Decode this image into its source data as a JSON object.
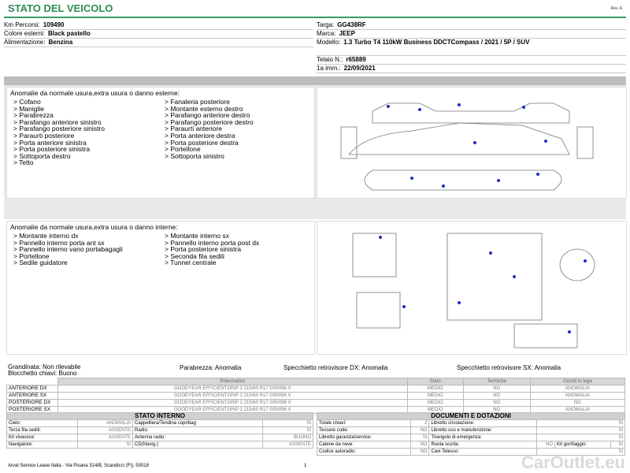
{
  "header": {
    "title": "STATO DEL VEICOLO",
    "rev": "Rev. A"
  },
  "info_left": [
    [
      "Km Percorsi:",
      "109490"
    ],
    [
      "Colore esterni:",
      "Black pastello"
    ],
    [
      "Alimentazione:",
      "Benzina"
    ]
  ],
  "info_right": [
    [
      "Targa:",
      "GG438RF"
    ],
    [
      "Marca:",
      "JEEP"
    ],
    [
      "Modello:",
      "1.3 Turbo T4 110kW Business DDCTCompass / 2021 / 5P / SUV"
    ],
    [
      "Telaio N.:",
      "r65889"
    ],
    [
      "1a imm.:",
      "22/09/2021"
    ]
  ],
  "external": {
    "heading": "Anomalie da normale usura,extra usura o danno esterne:",
    "col1": [
      "> Cofano",
      "> Maniglie",
      "> Parabrezza",
      "> Parafango anteriore sinistro",
      "> Parafango posteriore sinistro",
      "> Paraurti posteriore",
      "> Porta anteriore sinistra",
      "> Porta posteriore sinistra",
      "> Sottoporta destro",
      "> Tetto"
    ],
    "col2": [
      "> Fanaleria posteriore",
      "> Montante esterno destro",
      "> Parafango anteriore destro",
      "> Parafango posteriore destro",
      "> Paraurti anteriore",
      "> Porta anteriore destra",
      "> Porta posteriore destra",
      "> Portellone",
      "> Sottoporta sinistro"
    ]
  },
  "internal": {
    "heading": "Anomalie da normale usura,extra usura o danno interne:",
    "col1": [
      "> Montante interno dx",
      "> Pannello interno porta ant sx",
      "> Pannello interno vano portabagagli",
      "> Portellone",
      "> Sedile guidatore"
    ],
    "col2": [
      "> Montante interno sx",
      "> Pannello interno porta post dx",
      "> Porta posteriore sinistra",
      "> Seconda fila sedili",
      "> Tunnel centrale"
    ]
  },
  "status": {
    "grandinata": "Grandinata: Non rilevabile",
    "blocchetto": "Blocchetto chiavi: Buono",
    "parabrezza": "Parabrezza: Anomalia",
    "spec_dx": "Specchietto retrovisore DX: Anomalia",
    "spec_sx": "Specchietto retrovisore SX: Anomalia"
  },
  "tires": {
    "header": [
      "Pneumatico",
      "Stato",
      "Termiche",
      "Cerchi in lega"
    ],
    "rows": [
      [
        "ANTERIORE DX",
        "GOODYEAR EFFICIENTGRIP 2 215/60 R17 000/096 V",
        "MEDIO",
        "NO",
        "ANOMALIA"
      ],
      [
        "ANTERIORE SX",
        "GOODYEAR EFFICIENTGRIP 2 215/60 R17 000/096 V",
        "MEDIO",
        "NO",
        "ANOMALIA"
      ],
      [
        "POSTERIORE DX",
        "GOODYEAR EFFICIENTGRIP 2 215/60 R17 000/096 V",
        "MEDIO",
        "NO",
        "NO"
      ],
      [
        "POSTERIORE SX",
        "GOODYEAR EFFICIENTGRIP 2 215/60 R17 000/096 V",
        "MEDIO",
        "NO",
        "ANOMALIA"
      ]
    ]
  },
  "stato_interno": {
    "title": "STATO INTERNO",
    "rows": [
      [
        "Cielo:",
        "ANOMALIA",
        "Cappelliera/Tendina copribag:",
        "SI"
      ],
      [
        "Terza fila sedili:",
        "ASSENTE",
        "Radio:",
        "SI"
      ],
      [
        "Kit vivavoce:",
        "ASSENTE",
        "Antenna radio:",
        "BUONO"
      ],
      [
        "Navigatore:",
        "SI",
        "CD(Navig.):",
        "ASSENTE"
      ]
    ]
  },
  "documenti": {
    "title": "DOCUMENTI E DOTAZIONI",
    "rows": [
      [
        "Totale chiavi:",
        "2",
        "Libretto circolazione:",
        "SI"
      ],
      [
        "Tessere code:",
        "NO",
        "Libretto uso e manutenzione:",
        "SI"
      ],
      [
        "Libretto garanzia/service:",
        "SI",
        "Triangolo di emergenza:",
        "SI"
      ],
      [
        "Catene da neve:",
        "NO",
        "Ruota scorta:",
        "NO",
        "Kit gonfiaggio:",
        "SI"
      ],
      [
        "Codice autoradio:",
        "NO",
        "Cavi Telesso:",
        "SI"
      ]
    ]
  },
  "footer": {
    "address": "Arval Service Lease Italia - Via Pisana 314/B, Scandicci (FI), 50018",
    "page": "1",
    "watermark": "CarOutlet.eu"
  }
}
